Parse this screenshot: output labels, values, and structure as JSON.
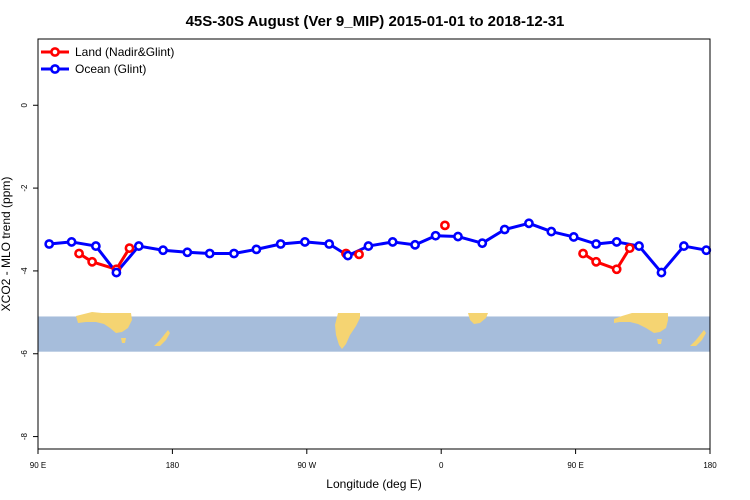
{
  "chart_data": {
    "type": "line",
    "title": "45S-30S August (Ver 9_MIP)   2015-01-01 to 2018-12-31",
    "xlabel": "Longitude (deg E)",
    "ylabel": "XCO2 - MLO trend (ppm)",
    "xlim": [
      90,
      450
    ],
    "ylim": [
      -8.3,
      1.6
    ],
    "x_ticks": [
      {
        "value": 90,
        "label": "90 E"
      },
      {
        "value": 162,
        "label": "180"
      },
      {
        "value": 234,
        "label": "90 W"
      },
      {
        "value": 306,
        "label": "0"
      },
      {
        "value": 378,
        "label": "90 E"
      },
      {
        "value": 450,
        "label": "180"
      }
    ],
    "y_ticks": [
      {
        "value": 0,
        "label": "0"
      },
      {
        "value": -2,
        "label": "-2"
      },
      {
        "value": -4,
        "label": "-4"
      },
      {
        "value": -6,
        "label": "-6"
      },
      {
        "value": -8,
        "label": "-8"
      }
    ],
    "background_map_band": {
      "y_top": -5.1,
      "y_bottom": -5.95,
      "ocean_color": "#a6bddb",
      "land_color": "#f5d472"
    },
    "series": [
      {
        "name": "Land (Nadir&Glint)",
        "color": "#ff0000",
        "x": [
          112,
          119,
          132,
          139,
          255,
          262,
          308,
          382,
          389,
          400,
          407
        ],
        "y": [
          -3.58,
          -3.78,
          -3.96,
          -3.45,
          -3.58,
          -3.6,
          -2.9,
          -3.58,
          -3.78,
          -3.96,
          -3.45
        ]
      },
      {
        "name": "Ocean (Glint)",
        "color": "#0000ff",
        "x": [
          96,
          108,
          121,
          132,
          144,
          157,
          170,
          182,
          195,
          207,
          220,
          233,
          246,
          256,
          267,
          280,
          292,
          303,
          315,
          328,
          340,
          353,
          365,
          377,
          389,
          400,
          412,
          424,
          436,
          448
        ],
        "y": [
          -3.35,
          -3.3,
          -3.4,
          -4.04,
          -3.4,
          -3.5,
          -3.55,
          -3.58,
          -3.58,
          -3.48,
          -3.35,
          -3.3,
          -3.35,
          -3.63,
          -3.4,
          -3.3,
          -3.37,
          -3.15,
          -3.17,
          -3.33,
          -3.0,
          -2.85,
          -3.05,
          -3.18,
          -3.35,
          -3.3,
          -3.4,
          -4.04,
          -3.4,
          -3.5
        ]
      }
    ]
  }
}
